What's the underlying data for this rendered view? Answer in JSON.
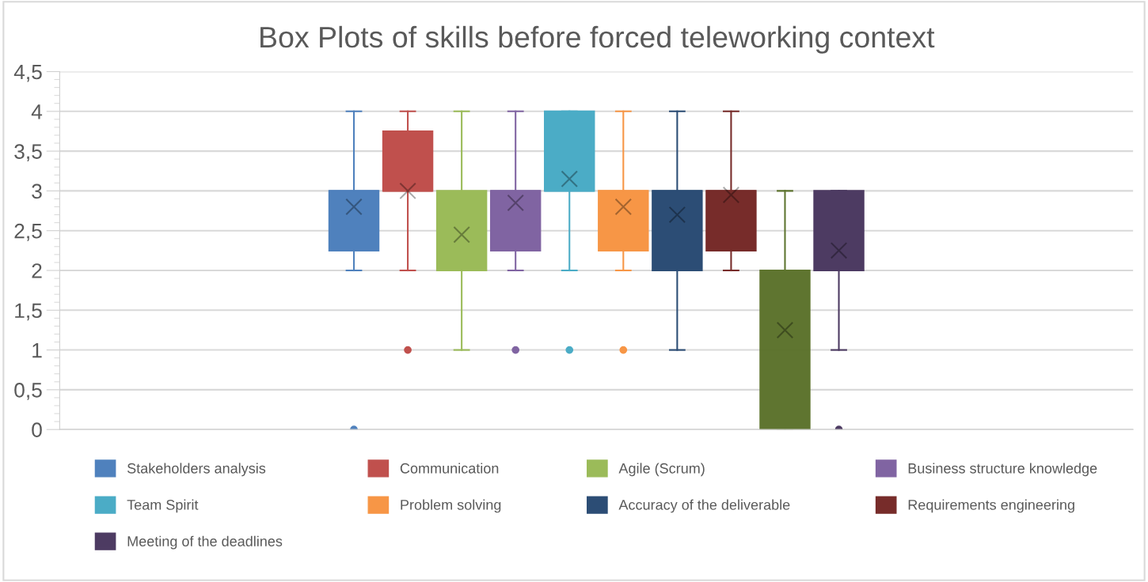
{
  "chart_data": {
    "type": "box",
    "title": "Box Plots of skills before forced teleworking context",
    "categories": [
      null
    ],
    "ylim": [
      0,
      4.5
    ],
    "yticks": [
      0,
      {
        "value": 0.5,
        "label": "0,5"
      },
      1,
      {
        "value": 1.5,
        "label": "1,5"
      },
      2,
      {
        "value": 2.5,
        "label": "2,5"
      },
      3,
      {
        "value": 3.5,
        "label": "3,5"
      },
      4,
      {
        "value": 4.5,
        "label": "4,5"
      }
    ],
    "grid": "y",
    "legend": "bottom",
    "marker": "circle",
    "series": [
      {
        "name": "Stakeholders analysis",
        "color": "#4f81bd",
        "boxes": [
          {
            "low": 2,
            "q1": 2.25,
            "median": 3,
            "q3": 3,
            "high": 4,
            "mean": 2.8,
            "outliers": [
              0
            ]
          }
        ]
      },
      {
        "name": "Communication",
        "color": "#c0504d",
        "boxes": [
          {
            "low": 2,
            "q1": 3,
            "median": 3,
            "q3": 3.75,
            "high": 4,
            "mean": 3.0,
            "outliers": [
              1
            ]
          }
        ]
      },
      {
        "name": "Agile (Scrum)",
        "color": "#9bbb59",
        "boxes": [
          {
            "low": 1,
            "q1": 2,
            "median": 2,
            "q3": 3,
            "high": 4,
            "mean": 2.45
          }
        ]
      },
      {
        "name": "Business structure knowledge",
        "color": "#8064a2",
        "boxes": [
          {
            "low": 2,
            "q1": 2.25,
            "median": 3,
            "q3": 3,
            "high": 4,
            "mean": 2.85,
            "outliers": [
              1
            ]
          }
        ]
      },
      {
        "name": "Team Spirit",
        "color": "#4bacc6",
        "boxes": [
          {
            "low": 2,
            "q1": 3,
            "median": 3,
            "q3": 4,
            "high": 4,
            "mean": 3.15,
            "outliers": [
              1
            ]
          }
        ]
      },
      {
        "name": "Problem solving",
        "color": "#f79646",
        "boxes": [
          {
            "low": 2,
            "q1": 2.25,
            "median": 3,
            "q3": 3,
            "high": 4,
            "mean": 2.8,
            "outliers": [
              1
            ]
          }
        ]
      },
      {
        "name": "Accuracy of the deliverable",
        "color": "#2c4d75",
        "boxes": [
          {
            "low": 1,
            "q1": 2,
            "median": 3,
            "q3": 3,
            "high": 4,
            "mean": 2.7
          }
        ]
      },
      {
        "name": "Requirements engineering",
        "color": "#772c2a",
        "boxes": [
          {
            "low": 2,
            "q1": 2.25,
            "median": 3,
            "q3": 3,
            "high": 4,
            "mean": 2.95
          }
        ]
      },
      {
        "color": "#5f7530",
        "boxes": [
          {
            "low": 0,
            "q1": 0,
            "median": 1,
            "q3": 2,
            "high": 3,
            "mean": 1.25
          }
        ]
      },
      {
        "name": "Meeting of the deadlines",
        "color": "#4d3b62",
        "boxes": [
          {
            "low": 1,
            "q1": 2,
            "median": 2,
            "q3": 3,
            "high": 3,
            "mean": 2.25,
            "outliers": [
              0
            ]
          }
        ]
      }
    ]
  }
}
